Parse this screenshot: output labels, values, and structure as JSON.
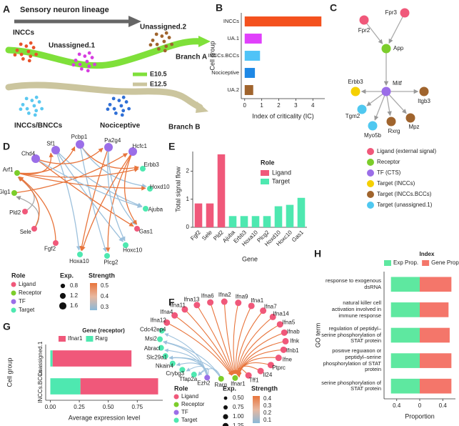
{
  "panels": [
    "A",
    "B",
    "C",
    "D",
    "E",
    "F",
    "G",
    "H"
  ],
  "lineage": {
    "title": "Sensory neuron lineage",
    "groups": [
      "INCCs",
      "Unassigned.1",
      "Unassigned.2",
      "INCCs/BNCCs",
      "Nociceptive"
    ],
    "branches": [
      "Branch A",
      "Branch B"
    ],
    "stages": [
      "E10.5",
      "E12.5"
    ]
  },
  "chart_data": [
    {
      "type": "bar",
      "orientation": "horizontal",
      "categories": [
        "INCCs",
        "UA.1",
        "INCCs.BCCs",
        "Nociceptive",
        "UA.2"
      ],
      "values": [
        4.5,
        1.0,
        0.9,
        0.6,
        0.5
      ],
      "colors": [
        "#f4511e",
        "#e040fb",
        "#4fc3f7",
        "#1e88e5",
        "#a0642d"
      ],
      "xlim": [
        -0.2,
        4.7
      ],
      "xticks": [
        0,
        1,
        2,
        3,
        4
      ],
      "xlabel": "Index of criticality (IC)",
      "ylabel": "Cell group"
    },
    {
      "type": "bar",
      "orientation": "vertical",
      "categories": [
        "Fgf2",
        "Sele",
        "Pld2",
        "Ajuba",
        "Erbb3",
        "Hoxa10",
        "Plcg2",
        "Hoxd10",
        "Hoxc10",
        "Gas1"
      ],
      "values": [
        0.85,
        0.85,
        2.6,
        0.4,
        0.4,
        0.4,
        0.4,
        0.75,
        0.8,
        1.05
      ],
      "colors": [
        "#f0587a",
        "#f0587a",
        "#f0587a",
        "#4ee8b0",
        "#4ee8b0",
        "#4ee8b0",
        "#4ee8b0",
        "#4ee8b0",
        "#4ee8b0",
        "#4ee8b0"
      ],
      "ylim": [
        0,
        2.7
      ],
      "yticks": [
        0,
        1,
        2
      ],
      "xlabel": "Gene",
      "ylabel": "Total signal flow",
      "legend": {
        "title": "Role",
        "items": [
          {
            "name": "Ligand",
            "color": "#f0587a"
          },
          {
            "name": "Target",
            "color": "#4ee8b0"
          }
        ]
      }
    },
    {
      "type": "bar",
      "orientation": "horizontal",
      "stacked": true,
      "categories": [
        "unassigned.1",
        "INCCs.BCCs"
      ],
      "series": [
        {
          "name": "Ifnar1",
          "color": "#f0587a",
          "values": [
            0.68,
            0.67
          ]
        },
        {
          "name": "Rarg",
          "color": "#4ee8b0",
          "values": [
            0.02,
            0.26
          ]
        }
      ],
      "xlim": [
        -0.04,
        0.97
      ],
      "xticks": [
        {
          "value": 0,
          "label": "0.00"
        },
        0.25,
        {
          "value": 0.5,
          "label": "0.50"
        },
        0.75
      ],
      "xlabel": "Average expression level",
      "ylabel": "Cell group",
      "legend_title": "Gene (receptor)"
    },
    {
      "type": "bar",
      "orientation": "horizontal",
      "stacked": true,
      "categories": [
        "response to exogenous dsRNA",
        "natural killer cell activation involved in immune response",
        "regulation of peptidyl–serine phosphorylation of STAT protein",
        "positive regulation of peptidyl–serine phosphorylation of STAT protein",
        "serine phosphorylation of STAT protein"
      ],
      "series": [
        {
          "name": "Exp Prop.",
          "color": "#5ee8a0",
          "values": [
            -0.5,
            -0.5,
            -0.5,
            -0.5,
            -0.5
          ]
        },
        {
          "name": "Gene Prop.",
          "color": "#f4766a",
          "values": [
            0.55,
            0.5,
            0.52,
            0.55,
            0.55
          ]
        }
      ],
      "xlim": [
        -0.62,
        0.62
      ],
      "xticks": [
        {
          "value": -0.4,
          "label": "0.4"
        },
        0,
        0.4
      ],
      "xlabel": "Proportion",
      "ylabel": "GO term",
      "legend_title": "Index"
    }
  ],
  "network_c": {
    "nodes": [
      {
        "name": "Fpr2",
        "color": "#f0587a"
      },
      {
        "name": "Fpr3",
        "color": "#f0587a"
      },
      {
        "name": "App",
        "color": "#7ccd2b"
      },
      {
        "name": "Mitf",
        "color": "#9b6ee8"
      },
      {
        "name": "Erbb3",
        "color": "#f5d000"
      },
      {
        "name": "Tgm2",
        "color": "#4fc8f0"
      },
      {
        "name": "Myo5b",
        "color": "#4fc8f0"
      },
      {
        "name": "Rxrg",
        "color": "#a0642d"
      },
      {
        "name": "Mpz",
        "color": "#a0642d"
      },
      {
        "name": "Itgb3",
        "color": "#a0642d"
      }
    ],
    "legend": [
      {
        "name": "Ligand (external signal)",
        "color": "#f0587a"
      },
      {
        "name": "Receptor",
        "color": "#7ccd2b"
      },
      {
        "name": "TF (CTS)",
        "color": "#9b6ee8"
      },
      {
        "name": "Target (INCCs)",
        "color": "#f5d000"
      },
      {
        "name": "Target (INCCs.BCCs)",
        "color": "#a0642d"
      },
      {
        "name": "Target (unassigned.1)",
        "color": "#4fc8f0"
      }
    ]
  },
  "network_d": {
    "nodes": [
      {
        "name": "Sf1",
        "color": "#9b6ee8"
      },
      {
        "name": "Pcbp1",
        "color": "#9b6ee8"
      },
      {
        "name": "Pa2g4",
        "color": "#9b6ee8"
      },
      {
        "name": "Hcfc1",
        "color": "#9b6ee8"
      },
      {
        "name": "Erbb3",
        "color": "#4ee8b0"
      },
      {
        "name": "Hoxd10",
        "color": "#4ee8b0"
      },
      {
        "name": "Ajuba",
        "color": "#4ee8b0"
      },
      {
        "name": "Gas1",
        "color": "#f0587a"
      },
      {
        "name": "Hoxc10",
        "color": "#4ee8b0"
      },
      {
        "name": "Plcg2",
        "color": "#4ee8b0"
      },
      {
        "name": "Hoxa10",
        "color": "#4ee8b0"
      },
      {
        "name": "Fgf2",
        "color": "#f0587a"
      },
      {
        "name": "Sele",
        "color": "#f0587a"
      },
      {
        "name": "Pld2",
        "color": "#f0587a"
      },
      {
        "name": "Glg1",
        "color": "#7ccd2b"
      },
      {
        "name": "Arf1",
        "color": "#7ccd2b"
      },
      {
        "name": "Chd4",
        "color": "#9b6ee8"
      }
    ],
    "role_title": "Role",
    "roles": [
      {
        "name": "Ligand",
        "color": "#f0587a"
      },
      {
        "name": "Receptor",
        "color": "#7ccd2b"
      },
      {
        "name": "TF",
        "color": "#9b6ee8"
      },
      {
        "name": "Target",
        "color": "#4ee8b0"
      }
    ],
    "exp_title": "Exp.",
    "exp_levels": [
      0.8,
      1.2,
      1.6
    ],
    "strength_title": "Strength",
    "strength_levels": [
      0.5,
      0.4,
      0.3
    ]
  },
  "network_f": {
    "nodes": [
      {
        "name": "Cdc42ep4",
        "color": "#4ee8b0"
      },
      {
        "name": "Ifna12",
        "color": "#f0587a"
      },
      {
        "name": "Ifna4",
        "color": "#f0587a"
      },
      {
        "name": "Ifna11",
        "color": "#f0587a"
      },
      {
        "name": "Ifna13",
        "color": "#f0587a"
      },
      {
        "name": "Ifna6",
        "color": "#f0587a"
      },
      {
        "name": "Ifna2",
        "color": "#f0587a"
      },
      {
        "name": "Ifna9",
        "color": "#f0587a"
      },
      {
        "name": "Ifna1",
        "color": "#f0587a"
      },
      {
        "name": "Ifna7",
        "color": "#f0587a"
      },
      {
        "name": "Ifna14",
        "color": "#f0587a"
      },
      {
        "name": "Ifna5",
        "color": "#f0587a"
      },
      {
        "name": "Ifnab",
        "color": "#f0587a"
      },
      {
        "name": "Ifnk",
        "color": "#f0587a"
      },
      {
        "name": "Ifnb1",
        "color": "#f0587a"
      },
      {
        "name": "Ifne",
        "color": "#f0587a"
      },
      {
        "name": "Ptprc",
        "color": "#f0587a"
      },
      {
        "name": "Il24",
        "color": "#f0587a"
      },
      {
        "name": "Tff1",
        "color": "#f0587a"
      },
      {
        "name": "Ifnar1",
        "color": "#7ccd2b"
      },
      {
        "name": "Rarg",
        "color": "#7ccd2b"
      },
      {
        "name": "Ezh2",
        "color": "#9b6ee8"
      },
      {
        "name": "Tfap2a",
        "color": "#4ee8b0"
      },
      {
        "name": "Crybg3",
        "color": "#4ee8b0"
      },
      {
        "name": "Nkain4",
        "color": "#4ee8b0"
      },
      {
        "name": "Slc29a1",
        "color": "#4ee8b0"
      },
      {
        "name": "Abracl",
        "color": "#4ee8b0"
      },
      {
        "name": "Msi2",
        "color": "#4ee8b0"
      }
    ],
    "role_title": "Role",
    "roles": [
      {
        "name": "Ligand",
        "color": "#f0587a"
      },
      {
        "name": "Receptor",
        "color": "#7ccd2b"
      },
      {
        "name": "TF",
        "color": "#9b6ee8"
      },
      {
        "name": "Target",
        "color": "#4ee8b0"
      }
    ],
    "exp_title": "Exp.",
    "exp_levels": [
      {
        "value": 0.5,
        "label": "0.50"
      },
      0.75,
      {
        "value": 1,
        "label": "1.00"
      },
      1.25
    ],
    "strength_title": "Strength",
    "strength_levels": [
      0.4,
      0.3,
      0.2,
      0.1
    ]
  }
}
